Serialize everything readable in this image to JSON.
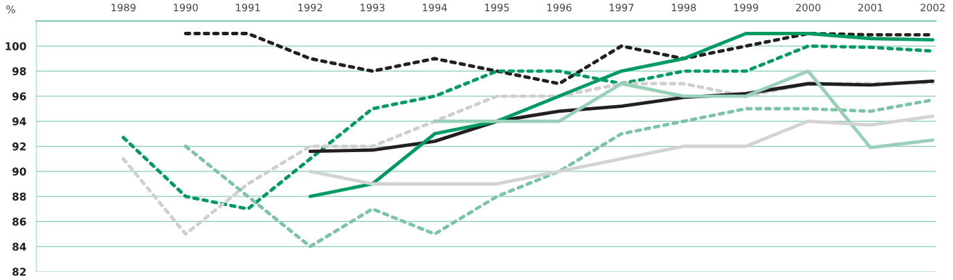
{
  "chart_data": {
    "type": "line",
    "ylabel": "%",
    "x": [
      1989,
      1990,
      1991,
      1992,
      1993,
      1994,
      1995,
      1996,
      1997,
      1998,
      1999,
      2000,
      2001,
      2002
    ],
    "series": [
      {
        "color": "#231f20",
        "line_style": "dashed",
        "values": [
          null,
          101,
          101,
          99,
          98,
          99,
          98,
          97,
          100,
          99,
          100,
          101,
          100.9,
          100.9
        ]
      },
      {
        "color": "#009a63",
        "line_style": "dashed",
        "values": [
          92.7,
          88,
          87,
          91,
          95,
          96,
          98,
          98,
          97,
          98,
          98,
          100,
          99.9,
          99.6
        ]
      },
      {
        "color": "#cfcfcf",
        "line_style": "dashed",
        "values": [
          91,
          85,
          89,
          92,
          92,
          94,
          96,
          96,
          97,
          97,
          96,
          97,
          97,
          97.1
        ]
      },
      {
        "color": "#7cc4a6",
        "line_style": "dashed",
        "values": [
          null,
          92,
          88,
          84,
          87,
          85,
          88,
          90,
          93,
          94,
          95,
          95,
          94.8,
          95.7
        ]
      },
      {
        "color": "#231f20",
        "line_style": "solid",
        "values": [
          null,
          null,
          null,
          91.6,
          91.7,
          92.4,
          94,
          94.8,
          95.2,
          95.9,
          96.2,
          97,
          96.9,
          97.2
        ]
      },
      {
        "color": "#009a63",
        "line_style": "solid",
        "values": [
          null,
          null,
          null,
          88,
          89,
          93,
          94,
          96,
          98,
          99,
          101,
          101,
          100.6,
          100.5
        ]
      },
      {
        "color": "#99d0b8",
        "line_style": "solid",
        "values": [
          null,
          null,
          null,
          null,
          null,
          94,
          94,
          94,
          97,
          96,
          96,
          98,
          91.9,
          92.5
        ]
      },
      {
        "color": "#d3d3d3",
        "line_style": "solid",
        "values": [
          null,
          null,
          null,
          90,
          89,
          89,
          89,
          90,
          91,
          92,
          92,
          94,
          93.7,
          94.4
        ]
      }
    ],
    "xlim": [
      1987.6,
      2002.05
    ],
    "xticks": [
      1989,
      1990,
      1991,
      1992,
      1993,
      1994,
      1995,
      1996,
      1997,
      1998,
      1999,
      2000,
      2001,
      2002
    ],
    "ylim": [
      82,
      102
    ],
    "yticks": [
      82,
      84,
      86,
      88,
      90,
      92,
      94,
      96,
      98,
      100
    ],
    "grid": "y",
    "legend": false,
    "marker": "none"
  }
}
